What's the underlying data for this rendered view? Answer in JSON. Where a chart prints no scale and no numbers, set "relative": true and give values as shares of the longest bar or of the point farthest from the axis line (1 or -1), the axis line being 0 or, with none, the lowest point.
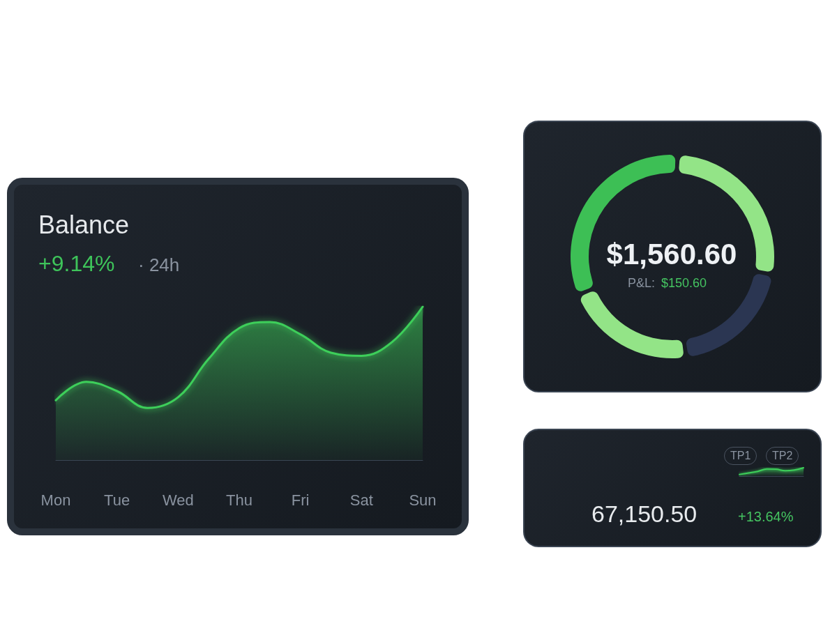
{
  "chart_data": [
    {
      "type": "area",
      "title": "Balance",
      "subtitle": "+9.14%",
      "annotations": [
        "· 24h"
      ],
      "relative": true,
      "marker": "none",
      "color": "#3ecf5a",
      "categories": [
        "Mon",
        null,
        "Tue",
        null,
        "Wed",
        null,
        "Thu",
        null,
        "Fri",
        null,
        "Sat",
        null,
        "Sun"
      ],
      "values": [
        0.39,
        0.51,
        0.45,
        0.34,
        0.41,
        0.66,
        0.86,
        0.9,
        0.82,
        0.7,
        0.68,
        0.77,
        1
      ]
    },
    {
      "type": "donut",
      "annotations": [
        "$1,560.60",
        "P&L:",
        "$150.60"
      ],
      "categories": [
        null,
        null,
        null,
        null
      ],
      "values": [
        27,
        20,
        21,
        32
      ],
      "colors": [
        "#93e487",
        "#2b3652",
        "#93e487",
        "#3dbf55"
      ]
    },
    {
      "type": "area",
      "relative": true,
      "marker": "none",
      "color": "#3ecf5a",
      "annotations": [
        "67,150.50",
        "+13.64%",
        "TP1",
        "TP2"
      ],
      "categories": [
        null,
        null,
        null,
        null,
        null,
        null,
        null,
        null
      ],
      "values": [
        0.18,
        0.36,
        0.55,
        0.85,
        0.82,
        0.64,
        0.73,
        1
      ]
    }
  ]
}
